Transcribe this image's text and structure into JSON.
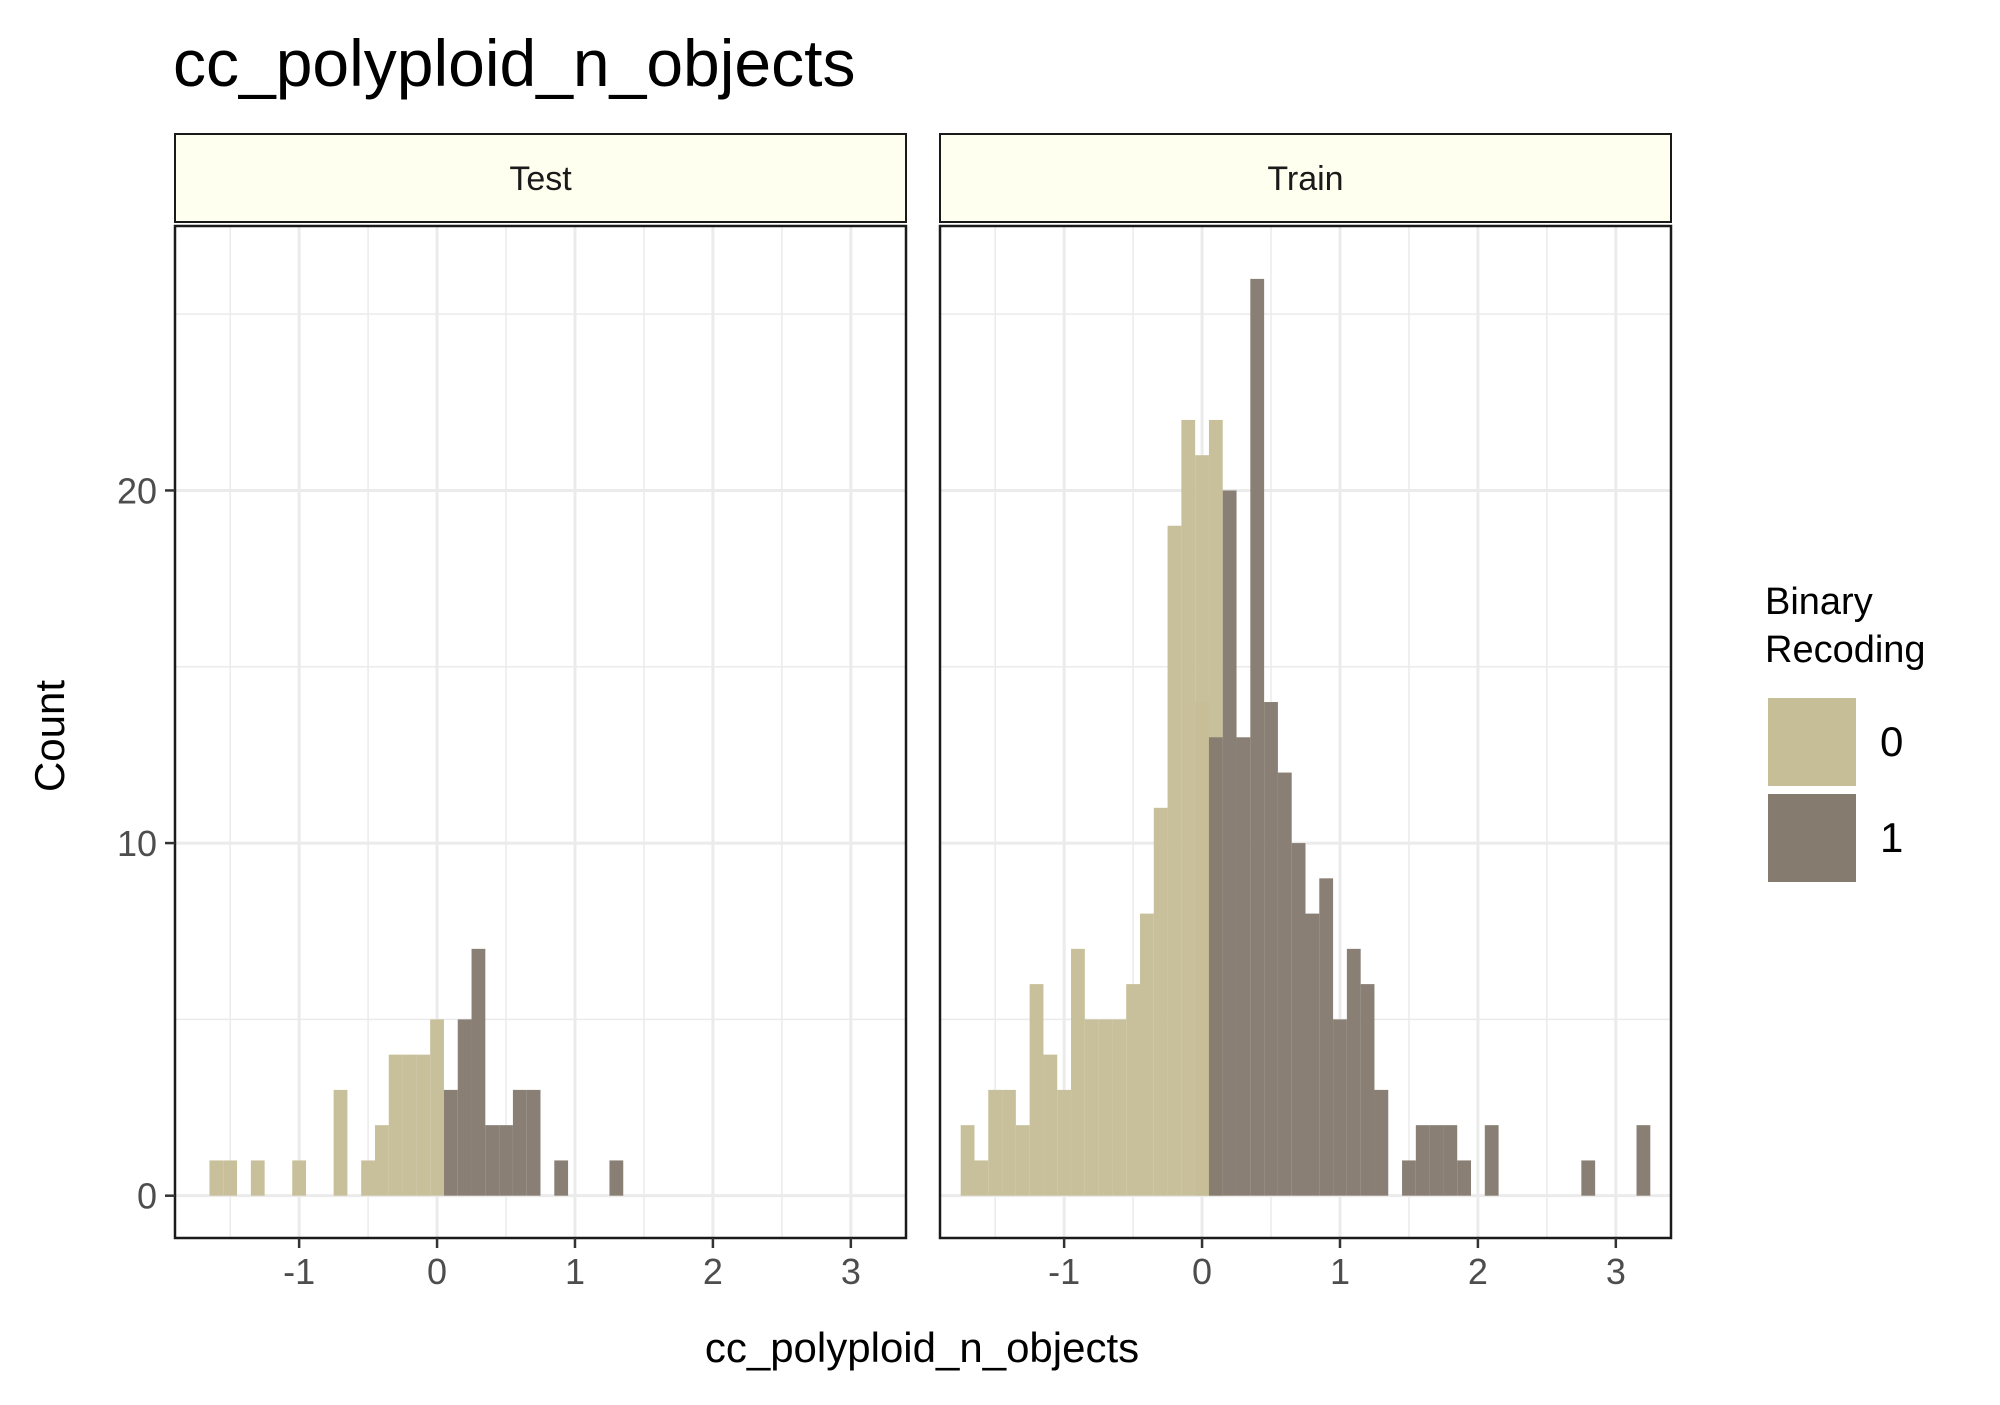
{
  "chart_data": {
    "type": "bar",
    "title": "cc_polyploid_n_objects",
    "xlabel": "cc_polyploid_n_objects",
    "ylabel": "Count",
    "xlim": [
      -1.9,
      3.4
    ],
    "ylim": [
      -1.2,
      27.5
    ],
    "x_ticks": [
      -1,
      0,
      1,
      2,
      3
    ],
    "y_ticks": [
      0,
      10,
      20
    ],
    "bin_width": 0.1,
    "grid": true,
    "legend": {
      "title_lines": [
        "Binary",
        "Recoding"
      ],
      "position": "right",
      "entries": [
        {
          "label": "0",
          "color": "#C6BE97"
        },
        {
          "label": "1",
          "color": "#857B6F"
        }
      ]
    },
    "facets": [
      {
        "label": "Test",
        "series": [
          {
            "name": "0",
            "color": "#C6BE97",
            "bins": [
              [
                -1.6,
                1
              ],
              [
                -1.5,
                1
              ],
              [
                -1.3,
                1
              ],
              [
                -1.0,
                1
              ],
              [
                -0.7,
                3
              ],
              [
                -0.5,
                1
              ],
              [
                -0.4,
                2
              ],
              [
                -0.3,
                4
              ],
              [
                -0.2,
                4
              ],
              [
                -0.1,
                4
              ],
              [
                0.0,
                5
              ]
            ]
          },
          {
            "name": "1",
            "color": "#857B6F",
            "bins": [
              [
                0.1,
                3
              ],
              [
                0.2,
                5
              ],
              [
                0.3,
                7
              ],
              [
                0.4,
                2
              ],
              [
                0.5,
                2
              ],
              [
                0.6,
                3
              ],
              [
                0.7,
                3
              ],
              [
                0.9,
                1
              ],
              [
                1.3,
                1
              ]
            ]
          }
        ]
      },
      {
        "label": "Train",
        "series": [
          {
            "name": "0",
            "color": "#C6BE97",
            "bins": [
              [
                -1.7,
                2
              ],
              [
                -1.6,
                1
              ],
              [
                -1.5,
                3
              ],
              [
                -1.4,
                3
              ],
              [
                -1.3,
                2
              ],
              [
                -1.2,
                6
              ],
              [
                -1.1,
                4
              ],
              [
                -1.0,
                3
              ],
              [
                -0.9,
                7
              ],
              [
                -0.8,
                5
              ],
              [
                -0.7,
                5
              ],
              [
                -0.6,
                5
              ],
              [
                -0.5,
                6
              ],
              [
                -0.4,
                8
              ],
              [
                -0.3,
                11
              ],
              [
                -0.2,
                19
              ],
              [
                -0.1,
                22
              ],
              [
                -0.0,
                21
              ],
              [
                0.0,
                14
              ],
              [
                0.1,
                22
              ]
            ]
          },
          {
            "name": "1",
            "color": "#857B6F",
            "bins": [
              [
                0.1,
                13
              ],
              [
                0.2,
                20
              ],
              [
                0.3,
                13
              ],
              [
                0.4,
                26
              ],
              [
                0.5,
                14
              ],
              [
                0.6,
                12
              ],
              [
                0.7,
                10
              ],
              [
                0.8,
                8
              ],
              [
                0.9,
                9
              ],
              [
                1.0,
                5
              ],
              [
                1.1,
                7
              ],
              [
                1.2,
                6
              ],
              [
                1.3,
                3
              ],
              [
                1.5,
                1
              ],
              [
                1.6,
                2
              ],
              [
                1.7,
                2
              ],
              [
                1.8,
                2
              ],
              [
                1.9,
                1
              ],
              [
                2.1,
                2
              ],
              [
                2.8,
                1
              ],
              [
                3.2,
                2
              ]
            ]
          }
        ]
      }
    ]
  }
}
